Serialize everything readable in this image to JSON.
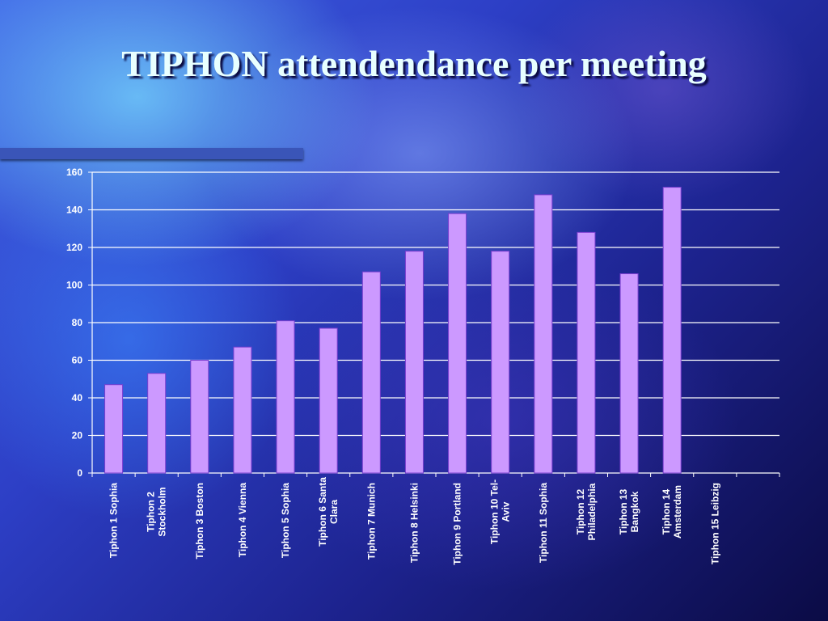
{
  "slide": {
    "title": "TIPHON attendendance per meeting"
  },
  "colors": {
    "bar_fill": "#cc99ff",
    "bar_stroke": "#7a3fd0",
    "gridline": "#ffffff",
    "title_text": "#e8ffff",
    "rule": "#3a55b8"
  },
  "chart_data": {
    "type": "bar",
    "title": "",
    "xlabel": "",
    "ylabel": "",
    "ylim": [
      0,
      160
    ],
    "yticks": [
      0,
      20,
      40,
      60,
      80,
      100,
      120,
      140,
      160
    ],
    "grid": true,
    "legend": "none",
    "categories": [
      [
        "Tiphon 1 Sophia"
      ],
      [
        "Tiphon 2",
        "Stockholm"
      ],
      [
        "Tiphon 3 Boston"
      ],
      [
        "Tiphon 4 Vienna"
      ],
      [
        "Tiphon 5 Sophia"
      ],
      [
        "Tiphon 6 Santa",
        "Clara"
      ],
      [
        "Tiphon 7 Munich"
      ],
      [
        "Tiphon 8 Helsinki"
      ],
      [
        "Tiphon 9 Portland"
      ],
      [
        "Tiphon 10 Tel-",
        "Aviv"
      ],
      [
        "Tiphon 11 Sophia"
      ],
      [
        "Tiphon 12",
        "Philadelphia"
      ],
      [
        "Tiphon 13",
        "Bangkok"
      ],
      [
        "Tiphon  14",
        "Amsterdam"
      ],
      [
        "Tiphon 15 Leibzig"
      ]
    ],
    "values": [
      47,
      53,
      60,
      67,
      81,
      77,
      107,
      118,
      138,
      118,
      148,
      128,
      106,
      152,
      null
    ]
  }
}
